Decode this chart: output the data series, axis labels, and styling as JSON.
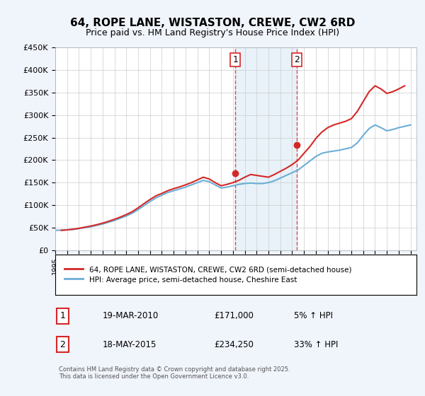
{
  "title": "64, ROPE LANE, WISTASTON, CREWE, CW2 6RD",
  "subtitle": "Price paid vs. HM Land Registry's House Price Index (HPI)",
  "legend_label1": "64, ROPE LANE, WISTASTON, CREWE, CW2 6RD (semi-detached house)",
  "legend_label2": "HPI: Average price, semi-detached house, Cheshire East",
  "footnote": "Contains HM Land Registry data © Crown copyright and database right 2025.\nThis data is licensed under the Open Government Licence v3.0.",
  "transaction1_label": "1",
  "transaction1_date": "19-MAR-2010",
  "transaction1_price": "£171,000",
  "transaction1_hpi": "5% ↑ HPI",
  "transaction2_label": "2",
  "transaction2_date": "18-MAY-2015",
  "transaction2_price": "£234,250",
  "transaction2_hpi": "33% ↑ HPI",
  "hpi_color": "#6baed6",
  "price_color": "#d62728",
  "vline1_x": 2010.21,
  "vline2_x": 2015.38,
  "marker1_y": 171000,
  "marker2_y": 234250,
  "ylim": [
    0,
    450000
  ],
  "xlim_left": 1995,
  "xlim_right": 2025.5,
  "background_color": "#f0f4fb",
  "plot_bg": "#ffffff",
  "hpi_data_x": [
    1995,
    1995.5,
    1996,
    1996.5,
    1997,
    1997.5,
    1998,
    1998.5,
    1999,
    1999.5,
    2000,
    2000.5,
    2001,
    2001.5,
    2002,
    2002.5,
    2003,
    2003.5,
    2004,
    2004.5,
    2005,
    2005.5,
    2006,
    2006.5,
    2007,
    2007.5,
    2008,
    2008.5,
    2009,
    2009.5,
    2010,
    2010.5,
    2011,
    2011.5,
    2012,
    2012.5,
    2013,
    2013.5,
    2014,
    2014.5,
    2015,
    2015.5,
    2016,
    2016.5,
    2017,
    2017.5,
    2018,
    2018.5,
    2019,
    2019.5,
    2020,
    2020.5,
    2021,
    2021.5,
    2022,
    2022.5,
    2023,
    2023.5,
    2024,
    2024.5,
    2025
  ],
  "hpi_data_y": [
    44000,
    44500,
    45000,
    46000,
    48000,
    50000,
    52000,
    55000,
    58000,
    62000,
    66000,
    71000,
    76000,
    82000,
    90000,
    99000,
    108000,
    116000,
    122000,
    128000,
    132000,
    136000,
    140000,
    145000,
    150000,
    155000,
    152000,
    145000,
    138000,
    140000,
    143000,
    146000,
    148000,
    149000,
    148000,
    148000,
    150000,
    154000,
    160000,
    166000,
    172000,
    178000,
    188000,
    198000,
    208000,
    215000,
    218000,
    220000,
    222000,
    225000,
    228000,
    238000,
    255000,
    270000,
    278000,
    272000,
    265000,
    268000,
    272000,
    275000,
    278000
  ],
  "price_data_x": [
    1995.5,
    1996,
    1996.5,
    1997,
    1997.5,
    1998,
    1998.5,
    1999,
    1999.5,
    2000,
    2000.5,
    2001,
    2001.5,
    2002,
    2002.5,
    2003,
    2003.5,
    2004,
    2004.5,
    2005,
    2005.5,
    2006,
    2006.5,
    2007,
    2007.5,
    2008,
    2008.5,
    2009,
    2009.5,
    2010,
    2010.5,
    2011,
    2011.5,
    2012,
    2012.5,
    2013,
    2013.5,
    2014,
    2014.5,
    2015,
    2015.5,
    2016,
    2016.5,
    2017,
    2017.5,
    2018,
    2018.5,
    2019,
    2019.5,
    2020,
    2020.5,
    2021,
    2021.5,
    2022,
    2022.5,
    2023,
    2023.5,
    2024,
    2024.5
  ],
  "price_data_y": [
    44000,
    45000,
    46500,
    48500,
    51000,
    53500,
    56500,
    60000,
    64000,
    68500,
    73500,
    79000,
    85500,
    94000,
    103500,
    112500,
    120500,
    126000,
    132000,
    136500,
    140500,
    145000,
    150000,
    156000,
    162000,
    158000,
    150000,
    143000,
    146000,
    150000,
    155000,
    162000,
    168000,
    166000,
    164000,
    162000,
    168000,
    175000,
    182000,
    190000,
    200000,
    215000,
    230000,
    248000,
    262000,
    272000,
    278000,
    282000,
    286000,
    292000,
    308000,
    330000,
    352000,
    365000,
    358000,
    348000,
    352000,
    358000,
    365000
  ]
}
